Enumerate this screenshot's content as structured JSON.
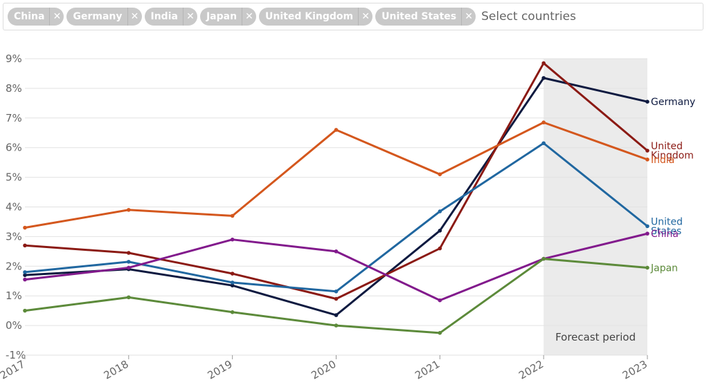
{
  "selector": {
    "chips": [
      {
        "label": "China"
      },
      {
        "label": "Germany"
      },
      {
        "label": "India"
      },
      {
        "label": "Japan"
      },
      {
        "label": "United Kingdom"
      },
      {
        "label": "United States"
      }
    ],
    "remove_glyph": "✕",
    "placeholder": "Select countries"
  },
  "chart_data": {
    "type": "line",
    "title": "",
    "xlabel": "",
    "ylabel": "",
    "categories": [
      "2017",
      "2018",
      "2019",
      "2020",
      "2021",
      "2022",
      "2023"
    ],
    "ylim": [
      -1,
      9
    ],
    "y_ticks": [
      "-1%",
      "0%",
      "1%",
      "2%",
      "3%",
      "4%",
      "5%",
      "6%",
      "7%",
      "8%",
      "9%"
    ],
    "grid": true,
    "forecast": {
      "label": "Forecast period",
      "from": "2022",
      "to": "2023",
      "color": "#ebebeb"
    },
    "series": [
      {
        "name": "Germany",
        "label_lines": [
          "Germany"
        ],
        "color": "#0e1a40",
        "values": [
          1.7,
          1.9,
          1.35,
          0.35,
          3.2,
          8.35,
          7.55
        ]
      },
      {
        "name": "United Kingdom",
        "label_lines": [
          "United",
          "Kingdom"
        ],
        "color": "#8b1a14",
        "values": [
          2.7,
          2.45,
          1.75,
          0.9,
          2.6,
          8.85,
          5.9
        ]
      },
      {
        "name": "India",
        "label_lines": [
          "India"
        ],
        "color": "#d4571d",
        "values": [
          3.3,
          3.9,
          3.7,
          6.6,
          5.1,
          6.85,
          5.6
        ]
      },
      {
        "name": "United States",
        "label_lines": [
          "United",
          "States"
        ],
        "color": "#2067a0",
        "values": [
          1.8,
          2.15,
          1.45,
          1.15,
          3.85,
          6.15,
          3.35
        ]
      },
      {
        "name": "China",
        "label_lines": [
          "China"
        ],
        "color": "#821a8c",
        "values": [
          1.55,
          1.95,
          2.9,
          2.5,
          0.85,
          2.25,
          3.1
        ]
      },
      {
        "name": "Japan",
        "label_lines": [
          "Japan"
        ],
        "color": "#5c8a3a",
        "values": [
          0.5,
          0.95,
          0.45,
          0.0,
          -0.25,
          2.25,
          1.95
        ]
      }
    ]
  }
}
